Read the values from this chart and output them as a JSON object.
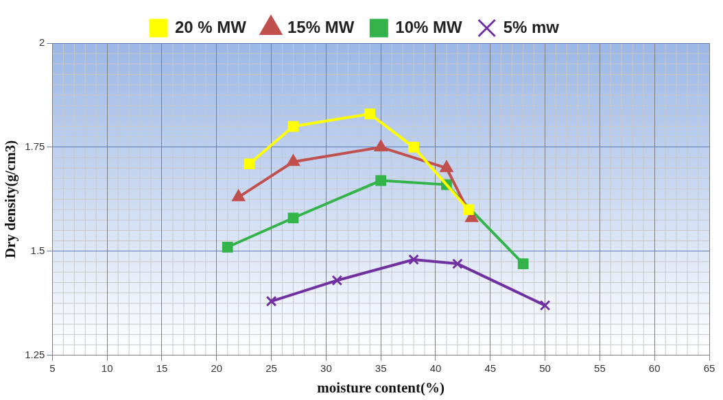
{
  "chart_data": {
    "type": "line",
    "xlabel": "moisture content(%)",
    "ylabel": "Dry density(g/cm3)",
    "xlim": [
      5,
      65
    ],
    "xticks": [
      5,
      10,
      15,
      20,
      25,
      30,
      35,
      40,
      45,
      50,
      55,
      60,
      65
    ],
    "ylim": [
      1.25,
      2
    ],
    "yticks": [
      1.25,
      1.5,
      1.75,
      2
    ],
    "grid": true,
    "legend": "top",
    "series": [
      {
        "name": "20 % MW",
        "color": "#ffff00",
        "marker": "square",
        "x": [
          23,
          27,
          34,
          38,
          43
        ],
        "values": [
          1.71,
          1.8,
          1.83,
          1.75,
          1.6
        ]
      },
      {
        "name": "15% MW",
        "color": "#c0504d",
        "marker": "triangle",
        "x": [
          22,
          27,
          35,
          41,
          43.3
        ],
        "values": [
          1.63,
          1.715,
          1.75,
          1.7,
          1.58
        ]
      },
      {
        "name": "10% MW",
        "color": "#33b34a",
        "marker": "square",
        "x": [
          21,
          27,
          35,
          41,
          48
        ],
        "values": [
          1.51,
          1.58,
          1.67,
          1.66,
          1.47
        ]
      },
      {
        "name": "5% mw",
        "color": "#7030a0",
        "marker": "cross",
        "x": [
          25,
          31,
          38,
          42,
          50
        ],
        "values": [
          1.38,
          1.43,
          1.48,
          1.47,
          1.37
        ]
      }
    ]
  }
}
